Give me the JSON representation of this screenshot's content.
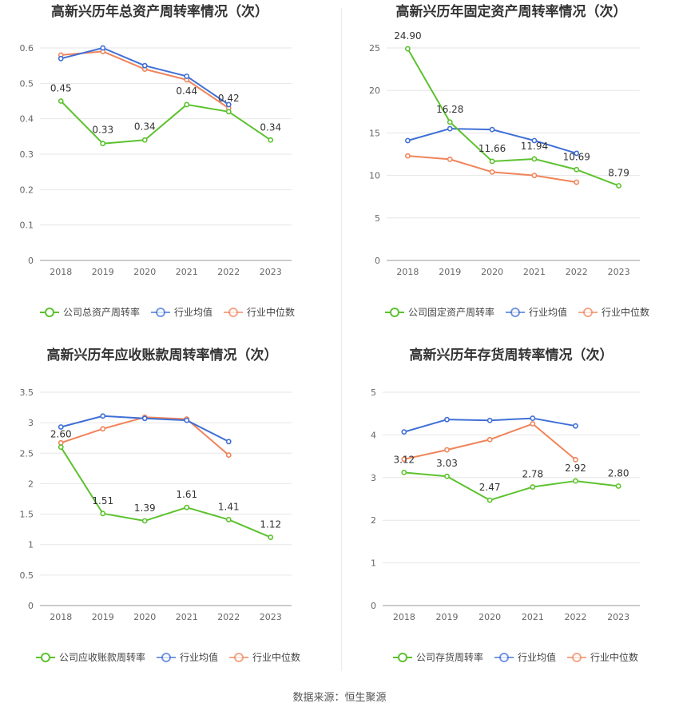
{
  "source_note": "数据来源：恒生聚源",
  "legend_labels": [
    "行业均值",
    "行业中位数"
  ],
  "colors": {
    "company": "#5cc22e",
    "avg": "#3f6fd6",
    "median": "#f0845a",
    "grid": "#e6e6e6",
    "axis": "#999999"
  },
  "chart_data": [
    {
      "type": "line",
      "title": "高新兴历年总资产周转率情况（次）",
      "categories": [
        "2018",
        "2019",
        "2020",
        "2021",
        "2022",
        "2023"
      ],
      "ylim": [
        0,
        0.6
      ],
      "yticks": [
        0,
        0.1,
        0.2,
        0.3,
        0.4,
        0.5,
        0.6
      ],
      "ytick_labels": [
        "0",
        "0.1",
        "0.2",
        "0.3",
        "0.4",
        "0.5",
        "0.6"
      ],
      "series": [
        {
          "name": "公司总资产周转率",
          "values": [
            0.45,
            0.33,
            0.34,
            0.44,
            0.42,
            0.34
          ],
          "labels": [
            "0.45",
            "0.33",
            "0.34",
            "0.44",
            "0.42",
            "0.34"
          ]
        },
        {
          "name": "行业均值",
          "values": [
            0.57,
            0.6,
            0.55,
            0.52,
            0.44,
            null
          ]
        },
        {
          "name": "行业中位数",
          "values": [
            0.58,
            0.59,
            0.54,
            0.51,
            0.43,
            null
          ]
        }
      ]
    },
    {
      "type": "line",
      "title": "高新兴历年固定资产周转率情况（次）",
      "categories": [
        "2018",
        "2019",
        "2020",
        "2021",
        "2022",
        "2023"
      ],
      "ylim": [
        0,
        25
      ],
      "yticks": [
        0,
        5,
        10,
        15,
        20,
        25
      ],
      "ytick_labels": [
        "0",
        "5",
        "10",
        "15",
        "20",
        "25"
      ],
      "series": [
        {
          "name": "公司固定资产周转率",
          "values": [
            24.9,
            16.28,
            11.66,
            11.94,
            10.69,
            8.79
          ],
          "labels": [
            "24.90",
            "16.28",
            "11.66",
            "11.94",
            "10.69",
            "8.79"
          ]
        },
        {
          "name": "行业均值",
          "values": [
            14.1,
            15.5,
            15.4,
            14.1,
            12.6,
            null
          ]
        },
        {
          "name": "行业中位数",
          "values": [
            12.3,
            11.9,
            10.4,
            10.0,
            9.2,
            null
          ]
        }
      ]
    },
    {
      "type": "line",
      "title": "高新兴历年应收账款周转率情况（次）",
      "categories": [
        "2018",
        "2019",
        "2020",
        "2021",
        "2022",
        "2023"
      ],
      "ylim": [
        0,
        3.5
      ],
      "yticks": [
        0,
        0.5,
        1,
        1.5,
        2,
        2.5,
        3,
        3.5
      ],
      "ytick_labels": [
        "0",
        "0.5",
        "1",
        "1.5",
        "2",
        "2.5",
        "3",
        "3.5"
      ],
      "series": [
        {
          "name": "公司应收账款周转率",
          "values": [
            2.6,
            1.51,
            1.39,
            1.61,
            1.41,
            1.12
          ],
          "labels": [
            "2.60",
            "1.51",
            "1.39",
            "1.61",
            "1.41",
            "1.12"
          ]
        },
        {
          "name": "行业均值",
          "values": [
            2.93,
            3.11,
            3.07,
            3.04,
            2.69,
            null
          ]
        },
        {
          "name": "行业中位数",
          "values": [
            2.67,
            2.9,
            3.09,
            3.06,
            2.47,
            null
          ]
        }
      ]
    },
    {
      "type": "line",
      "title": "高新兴历年存货周转率情况（次）",
      "categories": [
        "2018",
        "2019",
        "2020",
        "2021",
        "2022",
        "2023"
      ],
      "ylim": [
        0,
        5
      ],
      "yticks": [
        0,
        1,
        2,
        3,
        4,
        5
      ],
      "ytick_labels": [
        "0",
        "1",
        "2",
        "3",
        "4",
        "5"
      ],
      "series": [
        {
          "name": "公司存货周转率",
          "values": [
            3.12,
            3.03,
            2.47,
            2.78,
            2.92,
            2.8
          ],
          "labels": [
            "3.12",
            "3.03",
            "2.47",
            "2.78",
            "2.92",
            "2.80"
          ]
        },
        {
          "name": "行业均值",
          "values": [
            4.07,
            4.36,
            4.34,
            4.39,
            4.21,
            null
          ]
        },
        {
          "name": "行业中位数",
          "values": [
            3.43,
            3.65,
            3.89,
            4.26,
            3.42,
            null
          ]
        }
      ]
    }
  ]
}
